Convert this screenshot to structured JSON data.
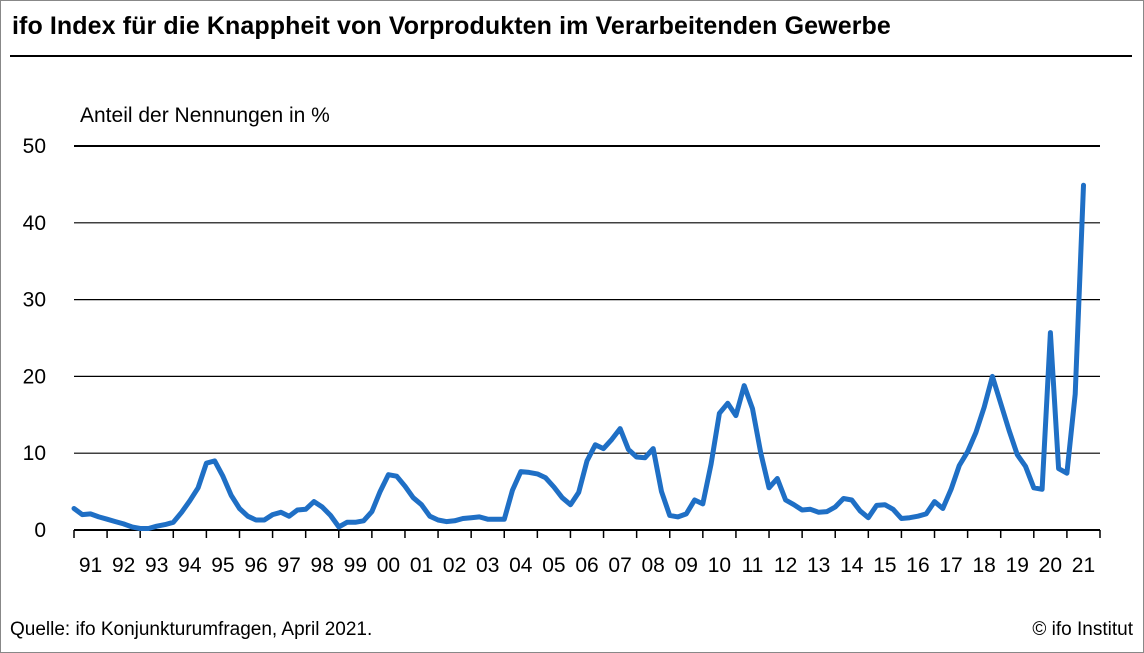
{
  "header": {
    "title": "ifo Index für die Knappheit von Vorprodukten im Verarbeitenden Gewerbe"
  },
  "footer": {
    "source": "Quelle: ifo Konjunkturumfragen, April 2021.",
    "copyright": "© ifo Institut"
  },
  "colors": {
    "line": "#1f6fc5",
    "grid": "#000000"
  },
  "chart_data": {
    "type": "line",
    "title": "ifo Index für die Knappheit von Vorprodukten im Verarbeitenden Gewerbe",
    "ylabel": "Anteil der Nennungen in %",
    "xlabel": "",
    "ylim": [
      0,
      50
    ],
    "yticks": [
      0,
      10,
      20,
      30,
      40,
      50
    ],
    "xlim": [
      1991,
      2022
    ],
    "xtick_labels": [
      "91",
      "92",
      "93",
      "94",
      "95",
      "96",
      "97",
      "98",
      "99",
      "00",
      "01",
      "02",
      "03",
      "04",
      "05",
      "06",
      "07",
      "08",
      "09",
      "10",
      "11",
      "12",
      "13",
      "14",
      "15",
      "16",
      "17",
      "18",
      "19",
      "20",
      "21"
    ],
    "grid": "horizontal",
    "legend": "none",
    "series": [
      {
        "values": [
          [
            1991.0,
            2.8
          ],
          [
            1991.25,
            2.0
          ],
          [
            1991.5,
            2.1
          ],
          [
            1991.75,
            1.7
          ],
          [
            1992.0,
            1.4
          ],
          [
            1992.25,
            1.1
          ],
          [
            1992.5,
            0.8
          ],
          [
            1992.75,
            0.4
          ],
          [
            1993.0,
            0.2
          ],
          [
            1993.25,
            0.2
          ],
          [
            1993.5,
            0.5
          ],
          [
            1993.75,
            0.7
          ],
          [
            1994.0,
            1.0
          ],
          [
            1994.25,
            2.3
          ],
          [
            1994.5,
            3.8
          ],
          [
            1994.75,
            5.5
          ],
          [
            1995.0,
            8.7
          ],
          [
            1995.25,
            9.0
          ],
          [
            1995.5,
            7.0
          ],
          [
            1995.75,
            4.5
          ],
          [
            1996.0,
            2.8
          ],
          [
            1996.25,
            1.8
          ],
          [
            1996.5,
            1.3
          ],
          [
            1996.75,
            1.3
          ],
          [
            1997.0,
            2.0
          ],
          [
            1997.25,
            2.3
          ],
          [
            1997.5,
            1.8
          ],
          [
            1997.75,
            2.6
          ],
          [
            1998.0,
            2.7
          ],
          [
            1998.25,
            3.7
          ],
          [
            1998.5,
            3.0
          ],
          [
            1998.75,
            1.9
          ],
          [
            1999.0,
            0.4
          ],
          [
            1999.25,
            1.0
          ],
          [
            1999.5,
            1.0
          ],
          [
            1999.75,
            1.2
          ],
          [
            2000.0,
            2.4
          ],
          [
            2000.25,
            5.0
          ],
          [
            2000.5,
            7.2
          ],
          [
            2000.75,
            7.0
          ],
          [
            2001.0,
            5.7
          ],
          [
            2001.25,
            4.2
          ],
          [
            2001.5,
            3.3
          ],
          [
            2001.75,
            1.8
          ],
          [
            2002.0,
            1.3
          ],
          [
            2002.25,
            1.1
          ],
          [
            2002.5,
            1.2
          ],
          [
            2002.75,
            1.5
          ],
          [
            2003.0,
            1.6
          ],
          [
            2003.25,
            1.7
          ],
          [
            2003.5,
            1.4
          ],
          [
            2003.75,
            1.4
          ],
          [
            2004.0,
            1.4
          ],
          [
            2004.25,
            5.2
          ],
          [
            2004.5,
            7.6
          ],
          [
            2004.75,
            7.5
          ],
          [
            2005.0,
            7.3
          ],
          [
            2005.25,
            6.8
          ],
          [
            2005.5,
            5.6
          ],
          [
            2005.75,
            4.2
          ],
          [
            2006.0,
            3.3
          ],
          [
            2006.25,
            4.9
          ],
          [
            2006.5,
            9.0
          ],
          [
            2006.75,
            11.1
          ],
          [
            2007.0,
            10.6
          ],
          [
            2007.25,
            11.8
          ],
          [
            2007.5,
            13.2
          ],
          [
            2007.75,
            10.5
          ],
          [
            2008.0,
            9.5
          ],
          [
            2008.25,
            9.4
          ],
          [
            2008.5,
            10.6
          ],
          [
            2008.75,
            5.0
          ],
          [
            2009.0,
            1.9
          ],
          [
            2009.25,
            1.7
          ],
          [
            2009.5,
            2.1
          ],
          [
            2009.75,
            3.9
          ],
          [
            2010.0,
            3.4
          ],
          [
            2010.25,
            8.6
          ],
          [
            2010.5,
            15.2
          ],
          [
            2010.75,
            16.5
          ],
          [
            2011.0,
            14.9
          ],
          [
            2011.25,
            18.8
          ],
          [
            2011.5,
            15.8
          ],
          [
            2011.75,
            10.0
          ],
          [
            2012.0,
            5.5
          ],
          [
            2012.25,
            6.7
          ],
          [
            2012.5,
            3.9
          ],
          [
            2012.75,
            3.3
          ],
          [
            2013.0,
            2.6
          ],
          [
            2013.25,
            2.7
          ],
          [
            2013.5,
            2.3
          ],
          [
            2013.75,
            2.4
          ],
          [
            2014.0,
            3.0
          ],
          [
            2014.25,
            4.1
          ],
          [
            2014.5,
            3.9
          ],
          [
            2014.75,
            2.5
          ],
          [
            2015.0,
            1.6
          ],
          [
            2015.25,
            3.2
          ],
          [
            2015.5,
            3.3
          ],
          [
            2015.75,
            2.7
          ],
          [
            2016.0,
            1.5
          ],
          [
            2016.25,
            1.6
          ],
          [
            2016.5,
            1.8
          ],
          [
            2016.75,
            2.1
          ],
          [
            2017.0,
            3.7
          ],
          [
            2017.25,
            2.8
          ],
          [
            2017.5,
            5.3
          ],
          [
            2017.75,
            8.4
          ],
          [
            2018.0,
            10.2
          ],
          [
            2018.25,
            12.7
          ],
          [
            2018.5,
            16.0
          ],
          [
            2018.75,
            20.0
          ],
          [
            2019.0,
            16.5
          ],
          [
            2019.25,
            13.0
          ],
          [
            2019.5,
            9.8
          ],
          [
            2019.75,
            8.3
          ],
          [
            2020.0,
            5.5
          ],
          [
            2020.25,
            5.3
          ],
          [
            2020.5,
            25.7
          ],
          [
            2020.75,
            8.0
          ],
          [
            2021.0,
            7.4
          ],
          [
            2021.25,
            17.7
          ],
          [
            2021.5,
            44.9
          ]
        ]
      }
    ]
  }
}
